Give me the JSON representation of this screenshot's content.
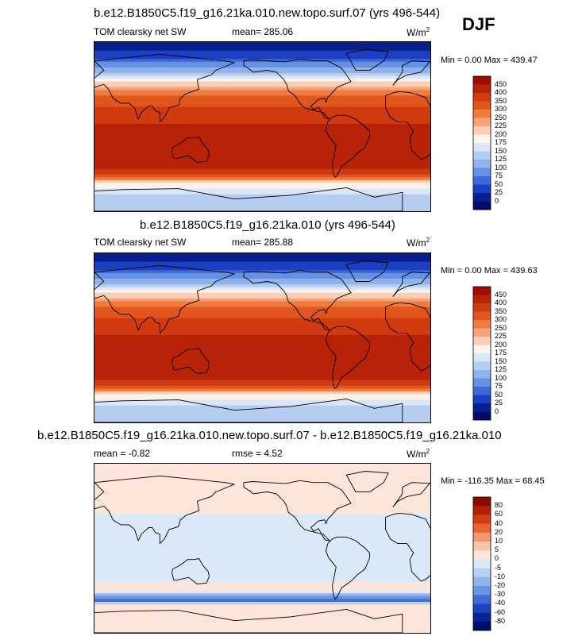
{
  "season": "DJF",
  "panels": [
    {
      "id": "top",
      "title": "b.e12.B1850C5.f19_g16.21ka.010.new.topo.surf.07 (yrs 496-544)",
      "variable": "TOM clearsky net SW",
      "stat1": "mean= 285.06",
      "stat2": "",
      "units_base": "W/m",
      "units_exp": "2",
      "minmax": "Min =   0.00 Max = 439.47"
    },
    {
      "id": "mid",
      "title": "b.e12.B1850C5.f19_g16.21ka.010 (yrs 496-544)",
      "variable": "TOM clearsky net SW",
      "stat1": "mean= 285.88",
      "stat2": "",
      "units_base": "W/m",
      "units_exp": "2",
      "minmax": "Min =   0.00 Max = 439.63"
    },
    {
      "id": "diff",
      "title": "b.e12.B1850C5.f19_g16.21ka.010.new.topo.surf.07 - b.e12.B1850C5.f19_g16.21ka.010",
      "variable": "mean =  -0.82",
      "stat1": "",
      "stat2": "rmse =   4.52",
      "units_base": "W/m",
      "units_exp": "2",
      "minmax": "Min = -116.35 Max =  68.45"
    }
  ],
  "chart_data": [
    {
      "type": "heatmap",
      "title": "b.e12.B1850C5.f19_g16.21ka.010.new.topo.surf.07 (yrs 496-544)",
      "subtitle": "TOM clearsky net SW",
      "units": "W/m2",
      "mean": 285.06,
      "min": 0.0,
      "max": 439.47,
      "levels": [
        "450",
        "400",
        "350",
        "300",
        "250",
        "225",
        "200",
        "175",
        "150",
        "125",
        "100",
        "75",
        "50",
        "25",
        "0"
      ],
      "colors": [
        "#9e0e00",
        "#b82206",
        "#cf3a0e",
        "#e0561c",
        "#ee7c3f",
        "#f6a379",
        "#fbcdb4",
        "#fcf3ee",
        "#dbe6f7",
        "#b5cdf1",
        "#8fb1ec",
        "#6590e3",
        "#3d68d8",
        "#1d3fc2",
        "#0a1f8e",
        "#000e6b"
      ],
      "zonal_profile": [
        {
          "lat": 90,
          "value": 5
        },
        {
          "lat": 75,
          "value": 40
        },
        {
          "lat": 60,
          "value": 110
        },
        {
          "lat": 45,
          "value": 210
        },
        {
          "lat": 30,
          "value": 320
        },
        {
          "lat": 15,
          "value": 375
        },
        {
          "lat": 0,
          "value": 410
        },
        {
          "lat": -15,
          "value": 430
        },
        {
          "lat": -30,
          "value": 430
        },
        {
          "lat": -45,
          "value": 420
        },
        {
          "lat": -60,
          "value": 200
        },
        {
          "lat": -75,
          "value": 140
        },
        {
          "lat": -90,
          "value": 125
        }
      ]
    },
    {
      "type": "heatmap",
      "title": "b.e12.B1850C5.f19_g16.21ka.010 (yrs 496-544)",
      "subtitle": "TOM clearsky net SW",
      "units": "W/m2",
      "mean": 285.88,
      "min": 0.0,
      "max": 439.63,
      "levels": [
        "450",
        "400",
        "350",
        "300",
        "250",
        "225",
        "200",
        "175",
        "150",
        "125",
        "100",
        "75",
        "50",
        "25",
        "0"
      ],
      "colors": [
        "#9e0e00",
        "#b82206",
        "#cf3a0e",
        "#e0561c",
        "#ee7c3f",
        "#f6a379",
        "#fbcdb4",
        "#fcf3ee",
        "#dbe6f7",
        "#b5cdf1",
        "#8fb1ec",
        "#6590e3",
        "#3d68d8",
        "#1d3fc2",
        "#0a1f8e",
        "#000e6b"
      ],
      "zonal_profile": [
        {
          "lat": 90,
          "value": 5
        },
        {
          "lat": 75,
          "value": 40
        },
        {
          "lat": 60,
          "value": 110
        },
        {
          "lat": 45,
          "value": 210
        },
        {
          "lat": 30,
          "value": 320
        },
        {
          "lat": 15,
          "value": 375
        },
        {
          "lat": 0,
          "value": 410
        },
        {
          "lat": -15,
          "value": 430
        },
        {
          "lat": -30,
          "value": 430
        },
        {
          "lat": -45,
          "value": 420
        },
        {
          "lat": -60,
          "value": 200
        },
        {
          "lat": -75,
          "value": 140
        },
        {
          "lat": -90,
          "value": 125
        }
      ]
    },
    {
      "type": "heatmap",
      "title": "b.e12.B1850C5.f19_g16.21ka.010.new.topo.surf.07 - b.e12.B1850C5.f19_g16.21ka.010",
      "units": "W/m2",
      "mean": -0.82,
      "rmse": 4.52,
      "min": -116.35,
      "max": 68.45,
      "levels": [
        "80",
        "60",
        "40",
        "20",
        "10",
        "5",
        "0",
        "-5",
        "-10",
        "-20",
        "-30",
        "-40",
        "-60",
        "-80"
      ],
      "colors": [
        "#8a0a00",
        "#b32008",
        "#d33d14",
        "#e8642f",
        "#f49470",
        "#f9c4a8",
        "#fde6d9",
        "#dae8f8",
        "#b9d0f2",
        "#93b4ea",
        "#6a93e1",
        "#3f6cd6",
        "#1d44bf",
        "#0a2294",
        "#000e6b"
      ],
      "zonal_profile": [
        {
          "lat": 90,
          "value": 2
        },
        {
          "lat": 60,
          "value": 2
        },
        {
          "lat": 45,
          "value": 2
        },
        {
          "lat": 30,
          "value": -2
        },
        {
          "lat": 0,
          "value": -2
        },
        {
          "lat": -30,
          "value": -2
        },
        {
          "lat": -45,
          "value": 2
        },
        {
          "lat": -55,
          "value": -35
        },
        {
          "lat": -60,
          "value": 3
        },
        {
          "lat": -75,
          "value": 2
        },
        {
          "lat": -90,
          "value": 2
        }
      ]
    }
  ]
}
